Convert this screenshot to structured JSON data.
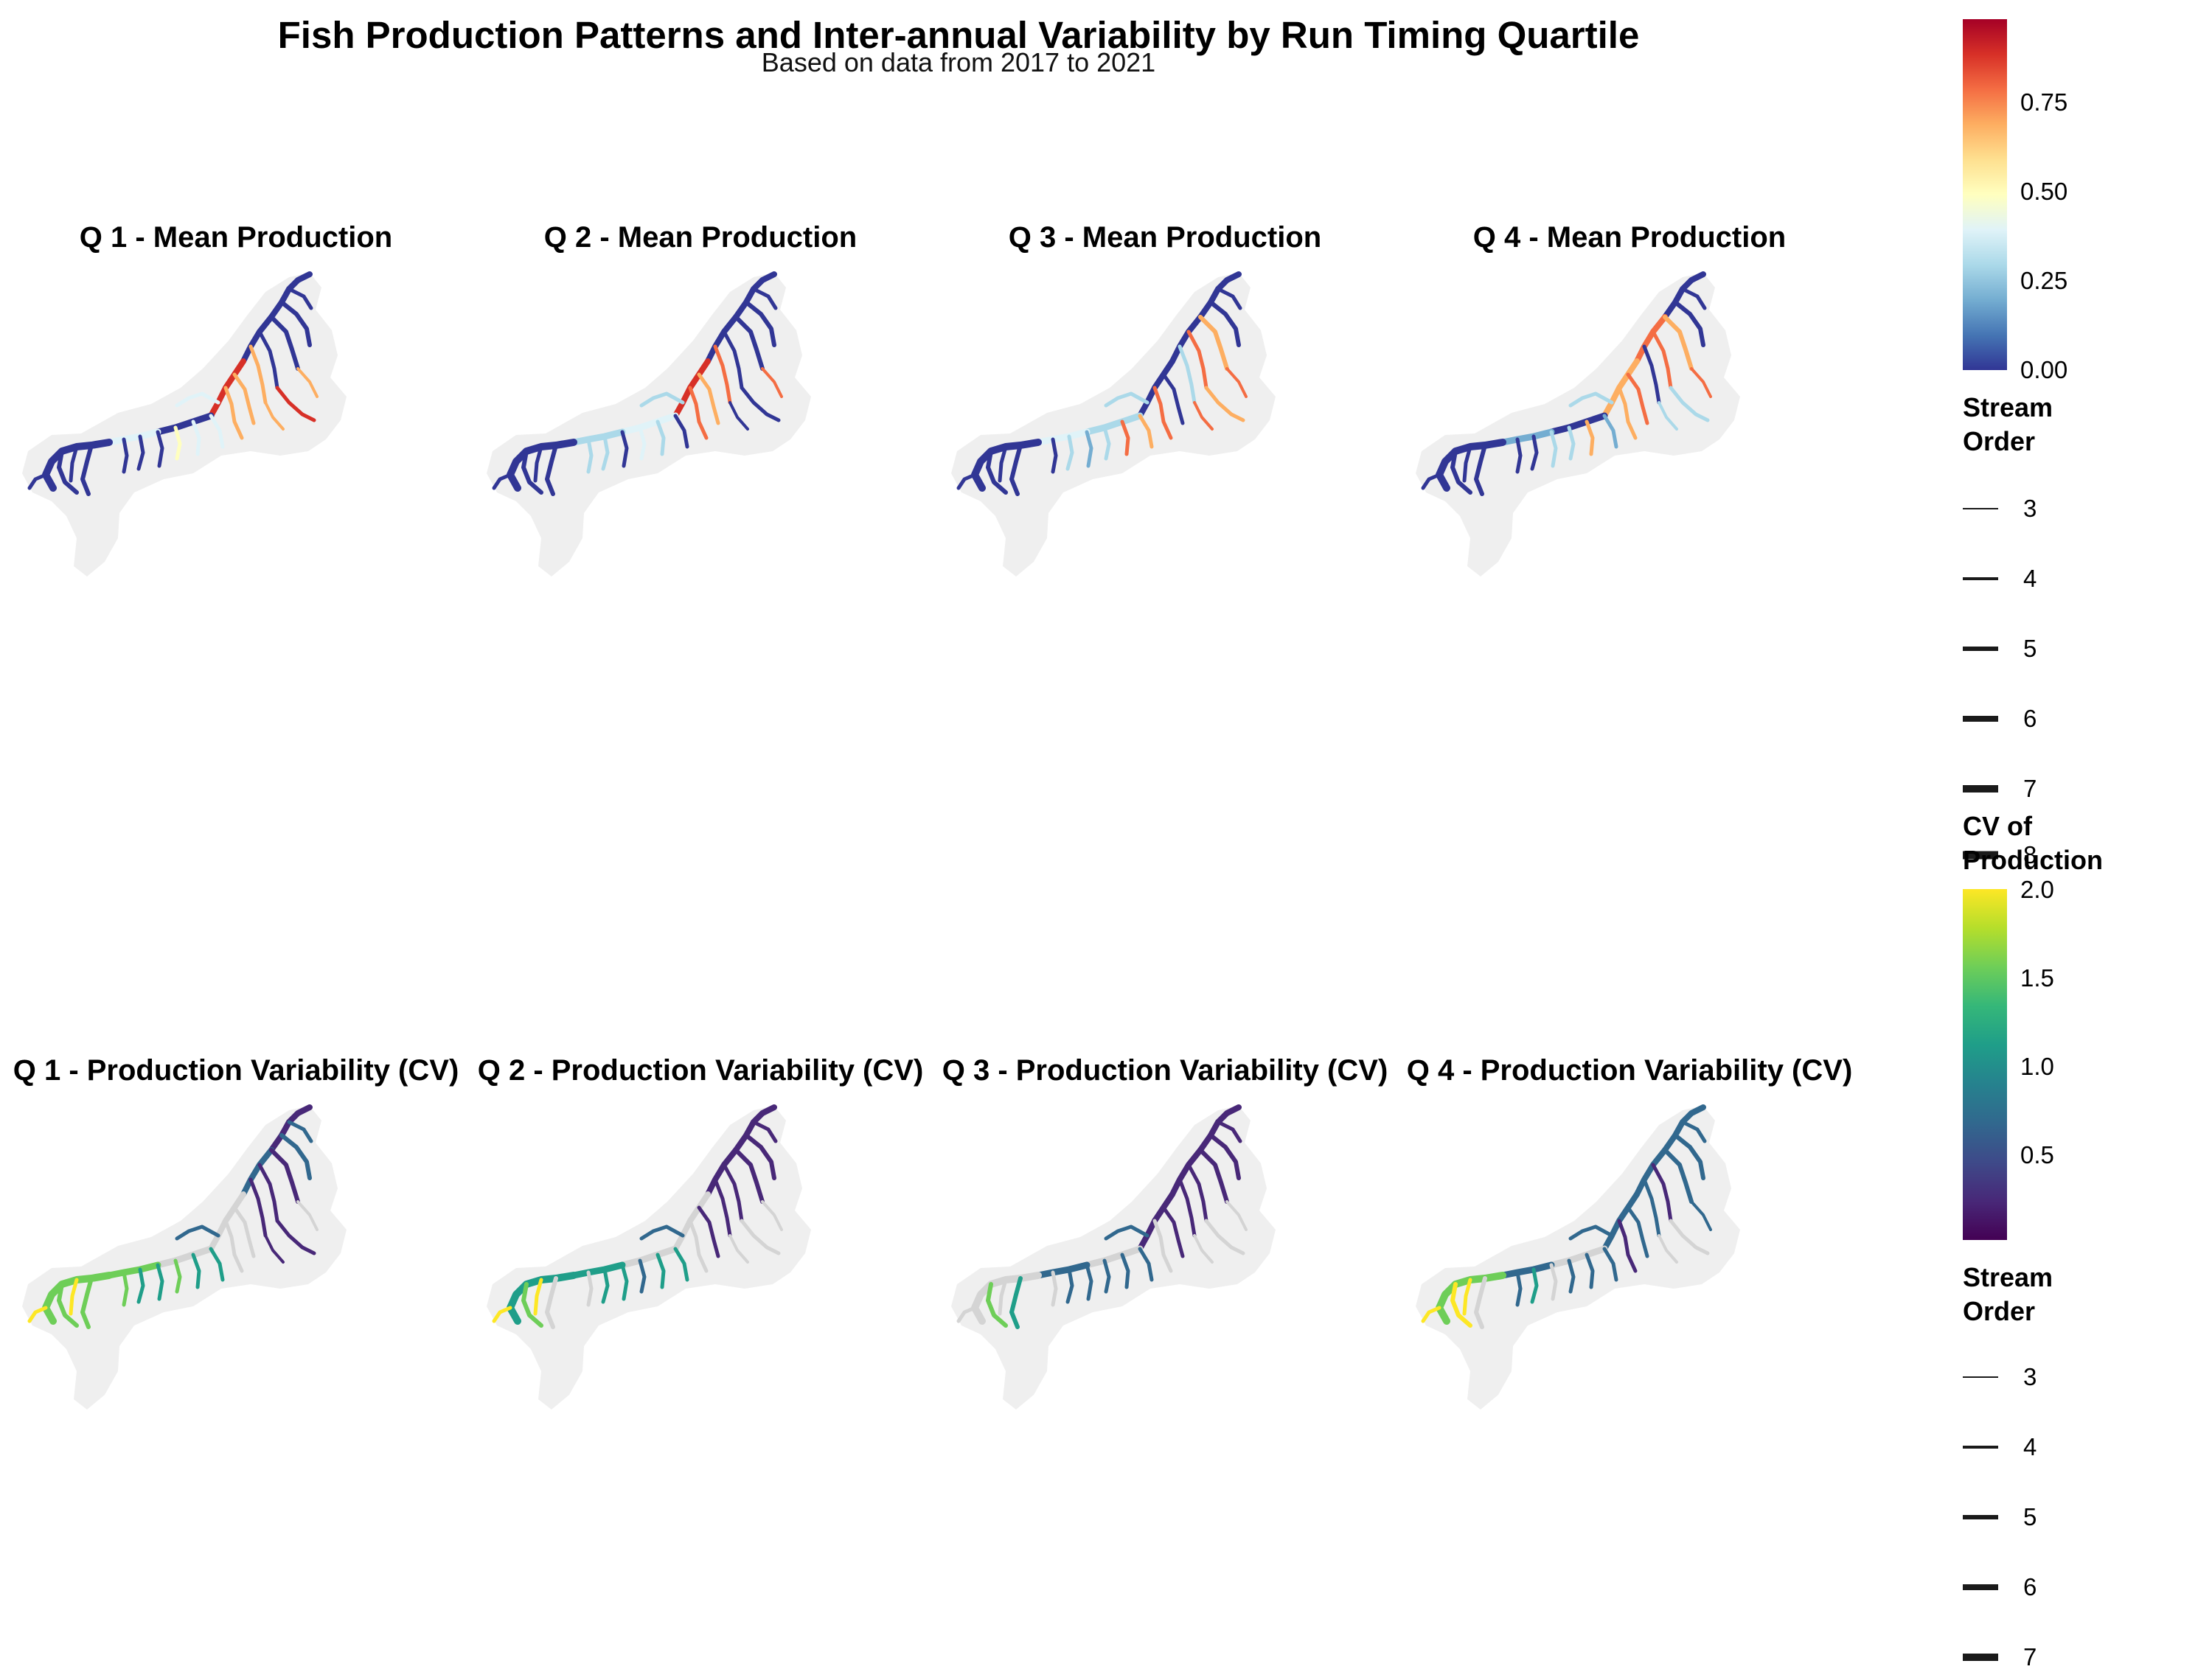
{
  "title": "Fish Production Patterns and Inter-annual Variability by Run Timing Quartile",
  "subtitle": "Based on data from 2017 to 2021",
  "mean_panels": [
    {
      "title": "Q 1 - Mean Production",
      "hot": [
        [
          6,
          4
        ],
        [
          7,
          6
        ],
        [
          8,
          4
        ],
        [
          9,
          4
        ],
        [
          10,
          4
        ],
        [
          11,
          6
        ],
        [
          12,
          4
        ]
      ],
      "mid": [
        [
          14,
          5
        ],
        [
          15,
          5
        ],
        [
          16,
          5
        ],
        [
          17,
          6
        ],
        [
          18,
          5
        ]
      ]
    },
    {
      "title": "Q 2 - Mean Production",
      "hot": [
        [
          6,
          5
        ],
        [
          7,
          6
        ],
        [
          8,
          4
        ],
        [
          9,
          5
        ],
        [
          10,
          5
        ]
      ],
      "mid": [
        [
          13,
          5
        ],
        [
          14,
          4
        ],
        [
          16,
          4
        ],
        [
          17,
          5
        ],
        [
          18,
          4
        ],
        [
          20,
          4
        ],
        [
          21,
          4
        ]
      ]
    },
    {
      "title": "Q 3 - Mean Production",
      "hot": [
        [
          4,
          4
        ],
        [
          5,
          5
        ],
        [
          9,
          5
        ],
        [
          10,
          5
        ],
        [
          11,
          4
        ],
        [
          12,
          5
        ],
        [
          15,
          4
        ],
        [
          16,
          5
        ]
      ],
      "mid": [
        [
          6,
          4
        ],
        [
          13,
          4
        ],
        [
          14,
          4
        ],
        [
          17,
          4
        ],
        [
          18,
          5
        ],
        [
          19,
          3
        ],
        [
          20,
          4
        ]
      ]
    },
    {
      "title": "Q 4 - Mean Production",
      "hot": [
        [
          3,
          5
        ],
        [
          4,
          4
        ],
        [
          5,
          5
        ],
        [
          7,
          4
        ],
        [
          8,
          5
        ],
        [
          9,
          4
        ],
        [
          10,
          5
        ],
        [
          16,
          4
        ]
      ],
      "mid": [
        [
          11,
          4
        ],
        [
          12,
          4
        ],
        [
          14,
          4
        ],
        [
          15,
          3
        ],
        [
          17,
          4
        ],
        [
          18,
          3
        ],
        [
          19,
          4
        ]
      ]
    }
  ],
  "cv_panels": [
    {
      "title": "Q 1 - Production Variability (CV)",
      "lit": [
        [
          0,
          0
        ],
        [
          1,
          1
        ],
        [
          2,
          1
        ],
        [
          3,
          1
        ],
        [
          4,
          0
        ],
        [
          5,
          0
        ],
        [
          6,
          0
        ],
        [
          11,
          0
        ],
        [
          12,
          0
        ],
        [
          14,
          1
        ],
        [
          15,
          2
        ],
        [
          16,
          2
        ],
        [
          17,
          3
        ],
        [
          18,
          3
        ],
        [
          19,
          2
        ],
        [
          20,
          2
        ],
        [
          21,
          3
        ],
        [
          22,
          3
        ],
        [
          23,
          3
        ],
        [
          24,
          4
        ],
        [
          25,
          3
        ],
        [
          26,
          4
        ]
      ]
    },
    {
      "title": "Q 2 - Production Variability (CV)",
      "lit": [
        [
          0,
          0
        ],
        [
          1,
          0
        ],
        [
          2,
          0
        ],
        [
          3,
          0
        ],
        [
          4,
          0
        ],
        [
          5,
          0
        ],
        [
          6,
          0
        ],
        [
          8,
          0
        ],
        [
          14,
          1
        ],
        [
          15,
          2
        ],
        [
          16,
          2
        ],
        [
          17,
          1
        ],
        [
          18,
          2
        ],
        [
          19,
          2
        ],
        [
          20,
          2
        ],
        [
          22,
          2
        ],
        [
          24,
          4
        ],
        [
          25,
          3
        ],
        [
          26,
          4
        ]
      ]
    },
    {
      "title": "Q 3 - Production Variability (CV)",
      "lit": [
        [
          0,
          0
        ],
        [
          1,
          0
        ],
        [
          2,
          0
        ],
        [
          3,
          0
        ],
        [
          4,
          0
        ],
        [
          5,
          0
        ],
        [
          6,
          0
        ],
        [
          7,
          0
        ],
        [
          8,
          0
        ],
        [
          14,
          1
        ],
        [
          15,
          1
        ],
        [
          16,
          1
        ],
        [
          17,
          1
        ],
        [
          18,
          1
        ],
        [
          19,
          1
        ],
        [
          20,
          1
        ],
        [
          23,
          2
        ],
        [
          25,
          3
        ]
      ]
    },
    {
      "title": "Q 4 - Production Variability (CV)",
      "lit": [
        [
          0,
          1
        ],
        [
          1,
          1
        ],
        [
          2,
          1
        ],
        [
          3,
          1
        ],
        [
          4,
          1
        ],
        [
          5,
          0
        ],
        [
          6,
          1
        ],
        [
          7,
          1
        ],
        [
          8,
          1
        ],
        [
          9,
          0
        ],
        [
          10,
          1
        ],
        [
          14,
          1
        ],
        [
          15,
          1
        ],
        [
          16,
          1
        ],
        [
          17,
          1
        ],
        [
          18,
          1
        ],
        [
          20,
          2
        ],
        [
          21,
          1
        ],
        [
          22,
          3
        ],
        [
          24,
          4
        ],
        [
          25,
          4
        ],
        [
          26,
          4
        ]
      ]
    }
  ],
  "legend_mean": {
    "ticks": [
      "0.75",
      "0.50",
      "0.25",
      "0.00"
    ],
    "tick_values": [
      0.75,
      0.5,
      0.25,
      0.0
    ],
    "range": [
      0,
      0.98
    ],
    "colors": [
      "#313695",
      "#4575b4",
      "#74add1",
      "#abd9e9",
      "#e0f3f8",
      "#ffffbf",
      "#fee090",
      "#fdae61",
      "#f46d43",
      "#d73027",
      "#a50026"
    ]
  },
  "legend_order_top": {
    "title": "Stream Order",
    "items": [
      {
        "label": "3",
        "width": 3
      },
      {
        "label": "4",
        "width": 4
      },
      {
        "label": "5",
        "width": 5
      },
      {
        "label": "6",
        "width": 6
      },
      {
        "label": "7",
        "width": 7
      },
      {
        "label": "8",
        "width": 8
      }
    ]
  },
  "legend_cv": {
    "title": "CV of Production",
    "ticks": [
      "2.0",
      "1.5",
      "1.0",
      "0.5"
    ],
    "tick_values": [
      2.0,
      1.5,
      1.0,
      0.5
    ],
    "range": [
      0.02,
      2.0
    ],
    "colors": [
      "#440154",
      "#482878",
      "#3e4a89",
      "#31688e",
      "#26828e",
      "#1f9e89",
      "#35b779",
      "#6ece58",
      "#b5de2b",
      "#fde725"
    ]
  },
  "legend_order_bottom": {
    "title": "Stream Order",
    "items": [
      {
        "label": "3",
        "width": 3
      },
      {
        "label": "4",
        "width": 4
      },
      {
        "label": "5",
        "width": 5
      },
      {
        "label": "6",
        "width": 6
      },
      {
        "label": "7",
        "width": 7
      }
    ]
  },
  "colors": {
    "basin": "#efefef",
    "inactive_stream": "#d4d4d4",
    "low_production": "#313695",
    "mid_production": "#a6cfe4",
    "high_production": "#f46d43",
    "peak_production": "#d73027",
    "light_production": "#fee090"
  }
}
